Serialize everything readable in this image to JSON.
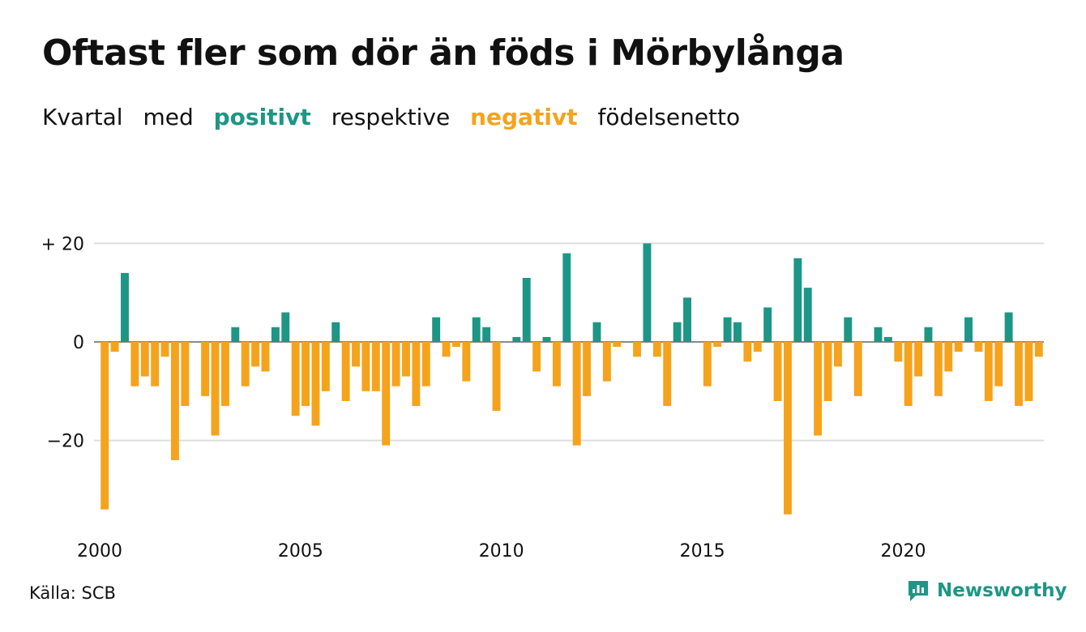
{
  "title": "Oftast fler som dör än föds i Mörbylånga",
  "subtitle": {
    "word1": "Kvartal",
    "word2": "med",
    "positive": "positivt",
    "word3": "respektive",
    "negative": "negativt",
    "word4": "födelsenetto"
  },
  "source": "Källa: SCB",
  "brand": "Newsworthy",
  "colors": {
    "positive": "#1d9685",
    "negative": "#f5a31c",
    "grid": "#dddddd"
  },
  "chart_data": {
    "type": "bar",
    "ylim": [
      -38,
      22
    ],
    "yticks": [
      {
        "value": 20,
        "label": "+ 20"
      },
      {
        "value": 0,
        "label": "0"
      },
      {
        "value": -20,
        "label": "−20"
      }
    ],
    "xticks": [
      2000,
      2005,
      2010,
      2015,
      2020
    ],
    "x_start": 2000,
    "periods_per_year": 4,
    "values": [
      -34,
      -2,
      14,
      -9,
      -7,
      -9,
      -3,
      -24,
      -13,
      0,
      -11,
      -19,
      -13,
      3,
      -9,
      -5,
      -6,
      3,
      6,
      -15,
      -13,
      -17,
      -10,
      4,
      -12,
      -5,
      -10,
      -10,
      -21,
      -9,
      -7,
      -13,
      -9,
      5,
      -3,
      -1,
      -8,
      5,
      3,
      -14,
      0,
      1,
      13,
      -6,
      1,
      -9,
      18,
      -21,
      -11,
      4,
      -8,
      -1,
      0,
      -3,
      20,
      -3,
      -13,
      4,
      9,
      0,
      -9,
      -1,
      5,
      4,
      -4,
      -2,
      7,
      -12,
      -35,
      17,
      11,
      -19,
      -12,
      -5,
      5,
      -11,
      0,
      3,
      1,
      -4,
      -13,
      -7,
      3,
      -11,
      -6,
      -2,
      5,
      -2,
      -12,
      -9,
      6,
      -13,
      -12,
      -3
    ],
    "grid": true
  }
}
